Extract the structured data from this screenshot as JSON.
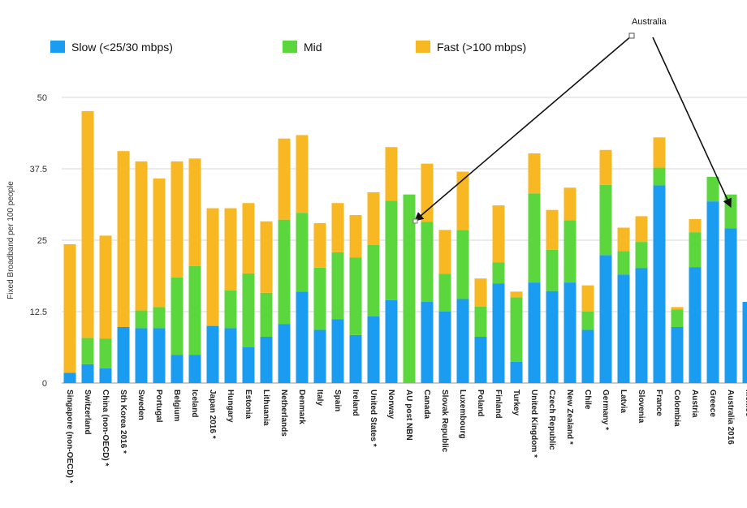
{
  "chart_data": {
    "type": "bar",
    "stacked": true,
    "ylabel": "Fixed Broadband per 100 people",
    "ylim": [
      0,
      50
    ],
    "yticks": [
      0,
      12.5,
      25,
      37.5,
      50
    ],
    "ytick_labels": [
      "0",
      "12.5",
      "25",
      "37.5",
      "50"
    ],
    "grid": true,
    "legend_position": "top",
    "categories": [
      "Singapore (non-OECD) *",
      "Switzerland",
      "China (non-OECD) *",
      "Sth Korea 2016 *",
      "Sweden",
      "Portugal",
      "Belgium",
      "Iceland",
      "Japan 2016 *",
      "Hungary",
      "Estonia",
      "Lithuania",
      "Netherlands",
      "Denmark",
      "Italy",
      "Spain",
      "Ireland",
      "United States *",
      "Norway",
      "AU post NBN",
      "Canada",
      "Slovak Republic",
      "Luxembourg",
      "Poland",
      "Finland",
      "Turkey",
      "United Kingdom *",
      "Czech Republic",
      "New Zealand *",
      "Chile",
      "Germany *",
      "Latvia",
      "Slovenia",
      "France",
      "Colombia",
      "Austria",
      "Greece",
      "Australia 2016",
      "Mexico"
    ],
    "series": [
      {
        "name": "Slow (<25/30 mbps)",
        "color": "#1a9cf0",
        "values": [
          1.8,
          3.3,
          2.6,
          9.8,
          9.6,
          9.6,
          4.9,
          4.9,
          10,
          9.6,
          6.3,
          8.1,
          10.3,
          16,
          9.3,
          11.2,
          8.4,
          11.7,
          14.5,
          0,
          14.2,
          12.5,
          14.7,
          8.1,
          17.4,
          3.7,
          17.6,
          16.1,
          17.6,
          9.3,
          22.4,
          19,
          20.1,
          34.6,
          9.8,
          20.3,
          31.8,
          27.1,
          14.2
        ]
      },
      {
        "name": "Mid",
        "color": "#5bd63c",
        "values": [
          0,
          4.6,
          5.2,
          0,
          3.1,
          3.7,
          13.6,
          15.6,
          0,
          6.6,
          12.9,
          7.7,
          18.3,
          13.8,
          10.9,
          11.7,
          13.6,
          12.5,
          17.4,
          33,
          14,
          6.6,
          12.1,
          5.3,
          3.7,
          11.3,
          15.6,
          7.2,
          10.9,
          3.2,
          12.3,
          4.1,
          4.6,
          3.1,
          3.1,
          6.1,
          4.3,
          5.9,
          0
        ]
      },
      {
        "name": "Fast (>100 mbps)",
        "color": "#f8b823",
        "values": [
          22.5,
          39.7,
          18,
          30.8,
          26.1,
          22.5,
          20.3,
          18.8,
          20.6,
          14.4,
          12.3,
          12.5,
          14.2,
          13.6,
          7.8,
          8.6,
          7.4,
          9.2,
          9.4,
          0,
          10.2,
          7.7,
          10.2,
          4.9,
          10,
          1,
          7,
          7,
          5.7,
          4.6,
          6.1,
          4.1,
          4.5,
          5.3,
          0.4,
          2.3,
          0,
          0,
          0
        ]
      }
    ],
    "annotations": [
      {
        "text": "Australia",
        "points_to": [
          "AU post NBN",
          "Australia 2016"
        ]
      }
    ]
  }
}
